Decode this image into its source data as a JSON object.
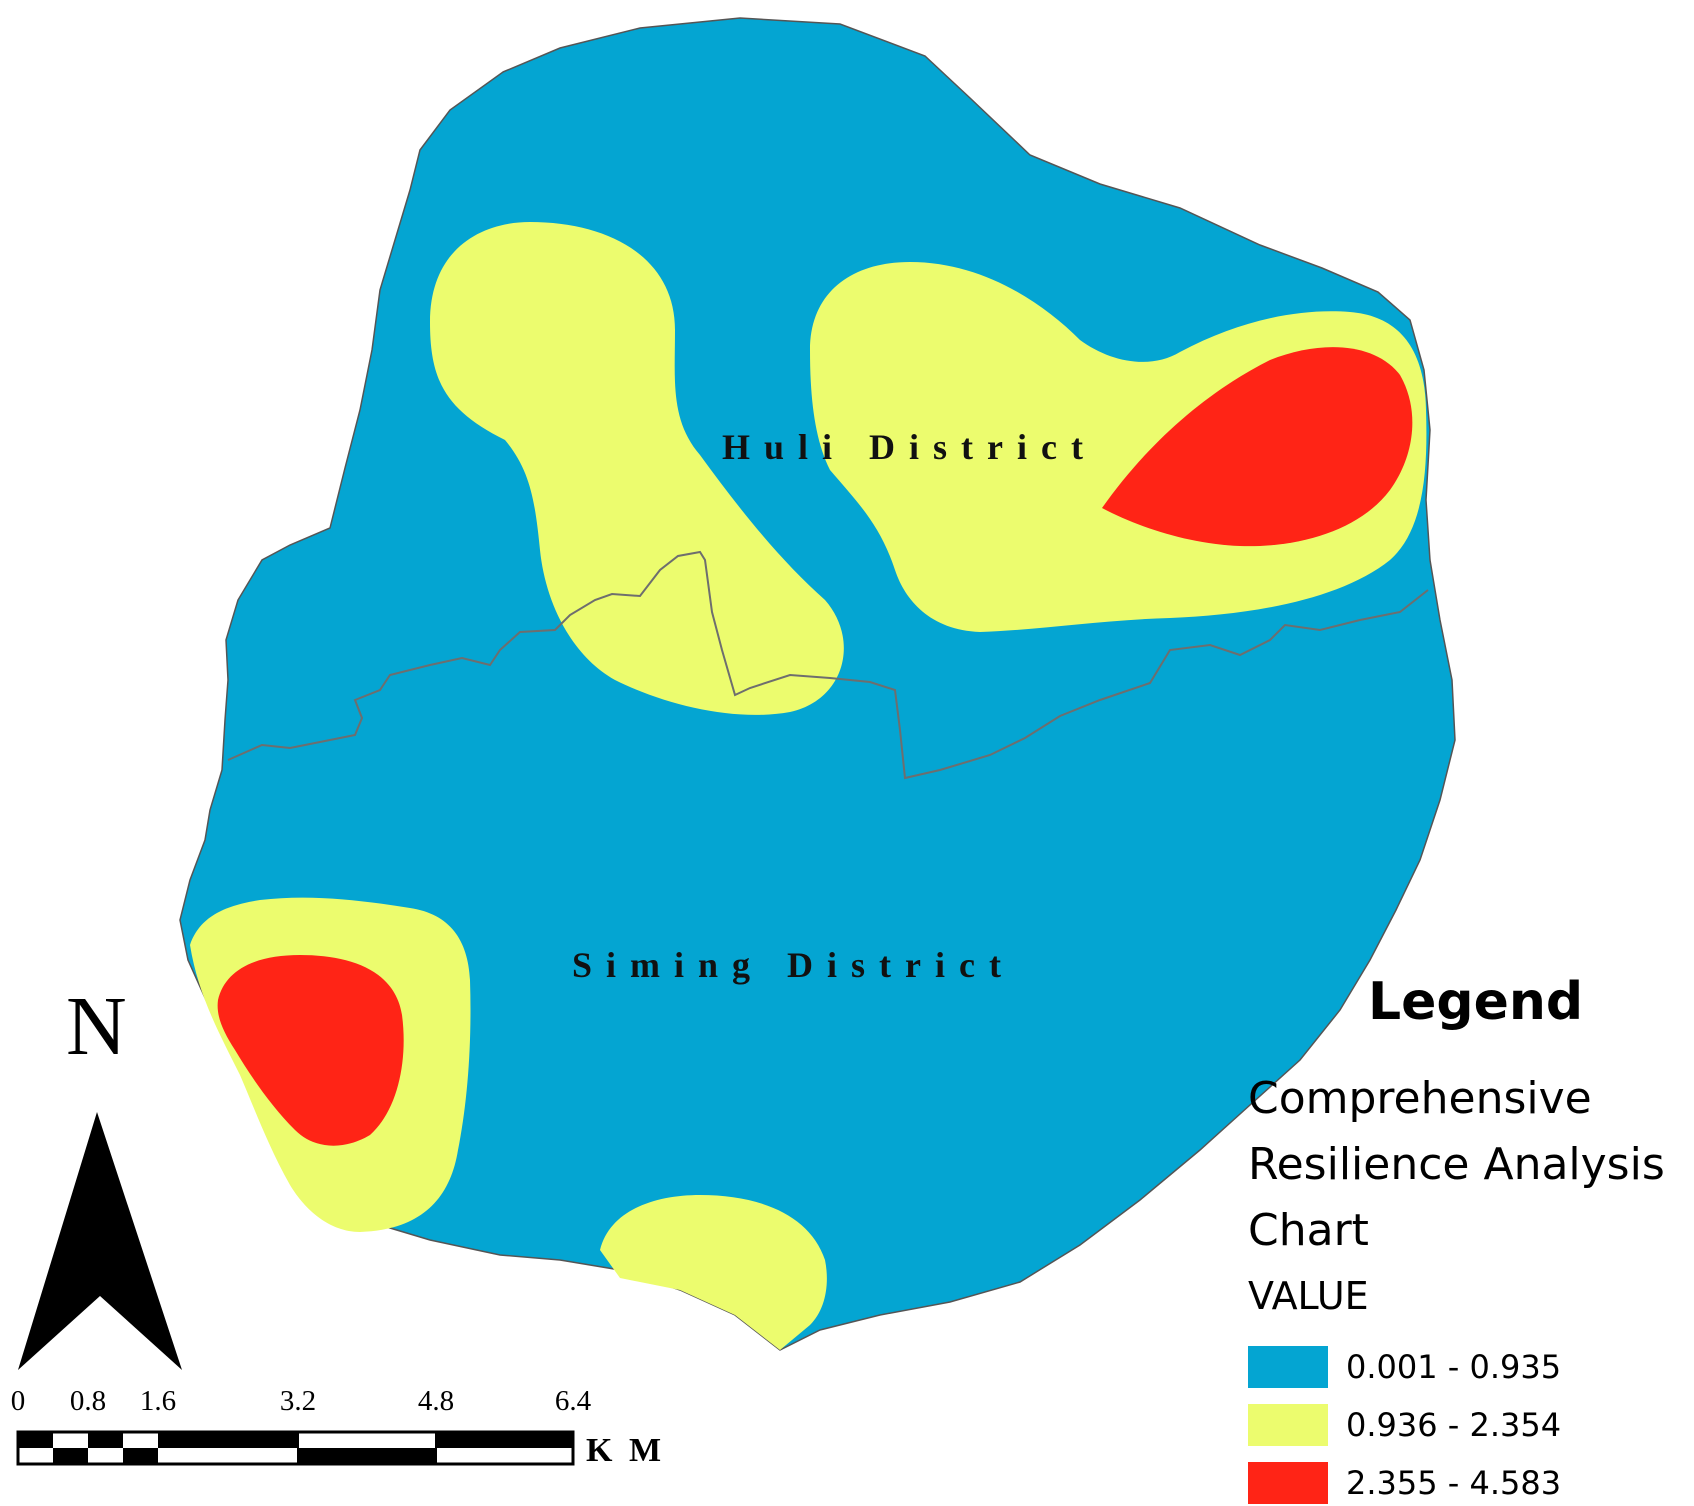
{
  "map": {
    "districts": [
      {
        "name": "Huli District"
      },
      {
        "name": "Siming District"
      }
    ],
    "colors": {
      "class_low": "#04A5D2",
      "class_mid": "#ECFC6E",
      "class_high": "#FF2416",
      "boundary": "#6e6e6e"
    }
  },
  "north_arrow": {
    "letter": "N"
  },
  "scale_bar": {
    "ticks": [
      "0",
      "0.8",
      "1.6",
      "3.2",
      "4.8",
      "6.4"
    ],
    "unit": "K M"
  },
  "legend": {
    "title": "Legend",
    "subtitle": "Comprehensive Resilience Analysis Chart",
    "field": "VALUE",
    "classes": [
      {
        "label": "0.001 - 0.935",
        "color": "#04A5D2"
      },
      {
        "label": "0.936 - 2.354",
        "color": "#ECFC6E"
      },
      {
        "label": "2.355 - 4.583",
        "color": "#FF2416"
      }
    ]
  }
}
